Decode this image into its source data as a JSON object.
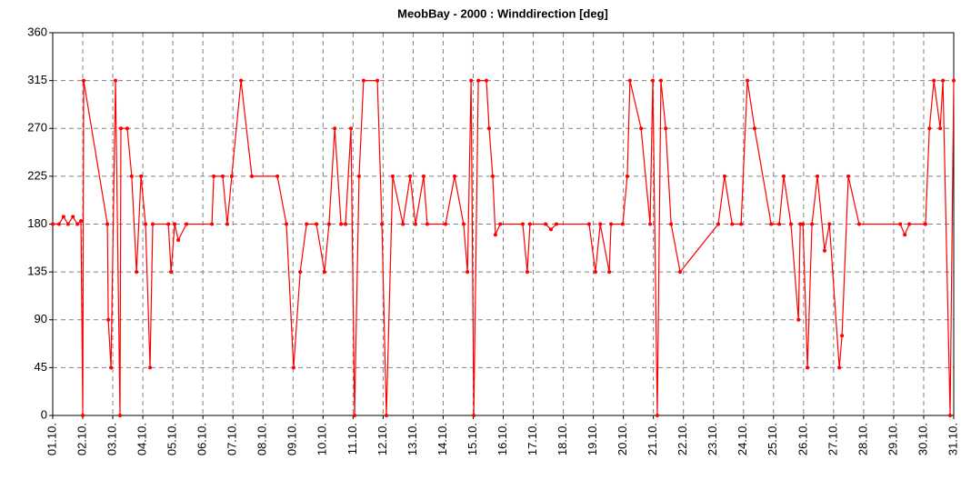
{
  "chart_data": {
    "type": "line",
    "title": "MeobBay - 2000 : Winddirection [deg]",
    "x": [
      1.0,
      1.21,
      1.36,
      1.51,
      1.67,
      1.82,
      1.94,
      2.0,
      2.03,
      2.82,
      2.85,
      2.94,
      3.09,
      3.24,
      3.27,
      3.48,
      3.63,
      3.79,
      3.94,
      4.09,
      4.24,
      4.33,
      4.85,
      4.94,
      5.06,
      5.18,
      5.45,
      6.3,
      6.36,
      6.66,
      6.81,
      6.96,
      7.27,
      7.63,
      8.48,
      8.78,
      9.02,
      9.24,
      9.45,
      9.78,
      10.05,
      10.2,
      10.39,
      10.6,
      10.75,
      10.93,
      11.05,
      11.2,
      11.35,
      11.81,
      11.96,
      12.11,
      12.32,
      12.66,
      12.9,
      13.08,
      13.35,
      13.47,
      14.08,
      14.38,
      14.68,
      14.81,
      14.93,
      15.02,
      15.17,
      15.44,
      15.53,
      15.65,
      15.74,
      15.9,
      16.65,
      16.8,
      16.89,
      17.41,
      17.59,
      17.77,
      18.86,
      19.07,
      19.23,
      19.53,
      19.59,
      19.98,
      20.13,
      20.22,
      20.59,
      20.89,
      20.98,
      21.13,
      21.25,
      21.41,
      21.59,
      21.89,
      23.16,
      23.37,
      23.62,
      23.92,
      24.13,
      24.37,
      24.92,
      25.19,
      25.34,
      25.58,
      25.83,
      25.89,
      25.98,
      26.13,
      26.28,
      26.46,
      26.7,
      26.86,
      27.19,
      27.28,
      27.49,
      27.85,
      29.22,
      29.37,
      29.52,
      30.06,
      30.19,
      30.34,
      30.55,
      30.64,
      30.88,
      31.0
    ],
    "series": [
      {
        "color": "#ff0000",
        "values": [
          180,
          180,
          187,
          180,
          187,
          180,
          183,
          0,
          315,
          180,
          90,
          45,
          315,
          0,
          270,
          270,
          225,
          135,
          225,
          180,
          45,
          180,
          180,
          135,
          180,
          165,
          180,
          180,
          225,
          225,
          180,
          225,
          315,
          225,
          225,
          180,
          45,
          135,
          180,
          180,
          135,
          180,
          270,
          180,
          180,
          270,
          0,
          225,
          315,
          315,
          180,
          0,
          225,
          180,
          225,
          180,
          225,
          180,
          180,
          225,
          180,
          135,
          315,
          0,
          315,
          315,
          270,
          225,
          170,
          180,
          180,
          135,
          180,
          180,
          175,
          180,
          180,
          135,
          180,
          135,
          180,
          180,
          225,
          315,
          270,
          180,
          315,
          0,
          315,
          270,
          180,
          135,
          180,
          225,
          180,
          180,
          315,
          270,
          180,
          180,
          225,
          180,
          90,
          180,
          180,
          45,
          180,
          225,
          155,
          180,
          45,
          75,
          225,
          180,
          180,
          170,
          180,
          180,
          270,
          315,
          270,
          315,
          0,
          315
        ]
      }
    ],
    "xlim": [
      1,
      31
    ],
    "xticks": [
      {
        "value": 1,
        "label": "01.10."
      },
      {
        "value": 2,
        "label": "02.10."
      },
      {
        "value": 3,
        "label": "03.10."
      },
      {
        "value": 4,
        "label": "04.10."
      },
      {
        "value": 5,
        "label": "05.10."
      },
      {
        "value": 6,
        "label": "06.10."
      },
      {
        "value": 7,
        "label": "07.10."
      },
      {
        "value": 8,
        "label": "08.10."
      },
      {
        "value": 9,
        "label": "09.10."
      },
      {
        "value": 10,
        "label": "10.10."
      },
      {
        "value": 11,
        "label": "11.10."
      },
      {
        "value": 12,
        "label": "12.10."
      },
      {
        "value": 13,
        "label": "13.10."
      },
      {
        "value": 14,
        "label": "14.10."
      },
      {
        "value": 15,
        "label": "15.10."
      },
      {
        "value": 16,
        "label": "16.10."
      },
      {
        "value": 17,
        "label": "17.10."
      },
      {
        "value": 18,
        "label": "18.10."
      },
      {
        "value": 19,
        "label": "19.10."
      },
      {
        "value": 20,
        "label": "20.10."
      },
      {
        "value": 21,
        "label": "21.10."
      },
      {
        "value": 22,
        "label": "22.10."
      },
      {
        "value": 23,
        "label": "23.10."
      },
      {
        "value": 24,
        "label": "24.10."
      },
      {
        "value": 25,
        "label": "25.10."
      },
      {
        "value": 26,
        "label": "26.10."
      },
      {
        "value": 27,
        "label": "27.10."
      },
      {
        "value": 28,
        "label": "28.10."
      },
      {
        "value": 29,
        "label": "29.10."
      },
      {
        "value": 30,
        "label": "30.10."
      },
      {
        "value": 31,
        "label": "31.10."
      }
    ],
    "ylim": [
      0,
      360
    ],
    "yticks": [
      0,
      45,
      90,
      135,
      180,
      225,
      270,
      315,
      360
    ],
    "grid": true
  }
}
